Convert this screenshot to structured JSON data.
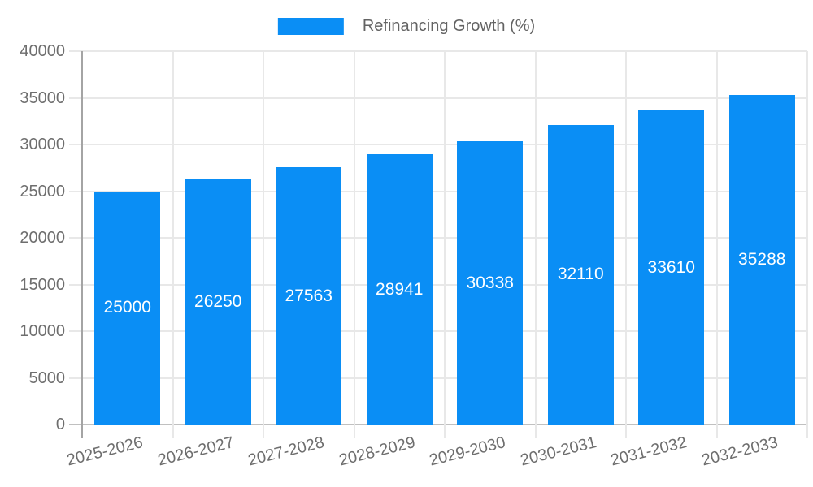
{
  "chart_data": {
    "type": "bar",
    "title": "",
    "xlabel": "",
    "ylabel": "",
    "legend_position": "top",
    "grid": true,
    "categories": [
      "2025-2026",
      "2026-2027",
      "2027-2028",
      "2028-2029",
      "2029-2030",
      "2030-2031",
      "2031-2032",
      "2032-2033"
    ],
    "series": [
      {
        "name": "Refinancing Growth (%)",
        "values": [
          25000,
          26250,
          27563,
          28941,
          30338,
          32110,
          33610,
          35288
        ]
      }
    ],
    "bar_value_labels": [
      "25000",
      "26250",
      "27563",
      "28941",
      "30338",
      "32110",
      "33610",
      "35288"
    ],
    "ylim": [
      0,
      40000
    ],
    "ytick_step": 5000,
    "yticks": [
      0,
      5000,
      10000,
      15000,
      20000,
      25000,
      30000,
      35000,
      40000
    ],
    "ytick_labels": [
      "0",
      "5000",
      "10000",
      "15000",
      "20000",
      "25000",
      "30000",
      "35000",
      "40000"
    ],
    "colors": {
      "bar": "#0a8ef5",
      "gridline": "#e8e8e8",
      "axis_line": "#a4a4a4",
      "baseline": "#c0c0c0",
      "axis_text": "#6e6e6e",
      "legend_text": "#636363",
      "bar_value_text": "#ffffff",
      "background": "#ffffff"
    }
  }
}
